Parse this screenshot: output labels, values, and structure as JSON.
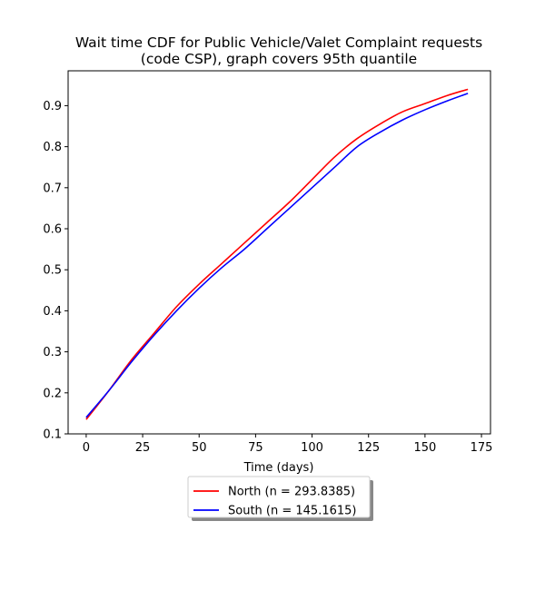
{
  "chart_data": {
    "type": "line",
    "title_line1": "Wait time CDF for Public Vehicle/Valet Complaint  requests",
    "title_line2": "(code CSP), graph covers 95th quantile",
    "xlabel": "Time (days)",
    "ylabel": "",
    "xlim": [
      -8,
      179
    ],
    "ylim": [
      0.1,
      0.985
    ],
    "xticks": [
      0,
      25,
      50,
      75,
      100,
      125,
      150,
      175
    ],
    "yticks": [
      0.1,
      0.2,
      0.3,
      0.4,
      0.5,
      0.6,
      0.7,
      0.8,
      0.9
    ],
    "grid": false,
    "legend_position": "bottom-center, below axes",
    "series": [
      {
        "name": "North (n = 293.8385)",
        "color": "#ff0000",
        "x": [
          0,
          10,
          20,
          30,
          40,
          50,
          60,
          70,
          80,
          90,
          100,
          110,
          120,
          130,
          140,
          150,
          160,
          169
        ],
        "y": [
          0.135,
          0.205,
          0.28,
          0.345,
          0.41,
          0.465,
          0.515,
          0.565,
          0.615,
          0.665,
          0.72,
          0.775,
          0.82,
          0.855,
          0.885,
          0.905,
          0.925,
          0.94
        ]
      },
      {
        "name": "South (n = 145.1615)",
        "color": "#0000ff",
        "x": [
          0,
          10,
          20,
          30,
          40,
          50,
          60,
          70,
          80,
          90,
          100,
          110,
          120,
          130,
          140,
          150,
          160,
          169
        ],
        "y": [
          0.14,
          0.205,
          0.275,
          0.34,
          0.4,
          0.455,
          0.505,
          0.55,
          0.6,
          0.65,
          0.7,
          0.75,
          0.8,
          0.835,
          0.865,
          0.89,
          0.912,
          0.93
        ]
      }
    ]
  }
}
